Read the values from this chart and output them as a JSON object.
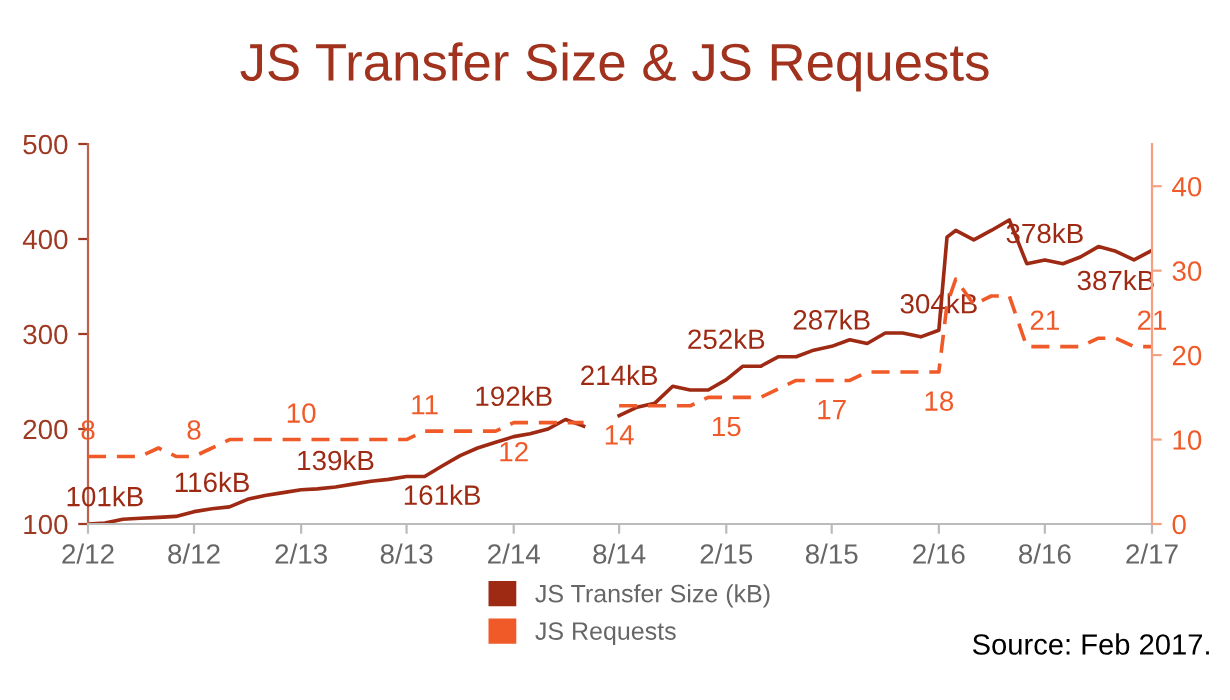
{
  "chart_data": {
    "type": "line",
    "title": "JS Transfer Size & JS Requests",
    "x": [
      "2012-02-01",
      "2012-03-01",
      "2012-04-01",
      "2012-05-01",
      "2012-06-01",
      "2012-07-01",
      "2012-08-01",
      "2012-09-01",
      "2012-10-01",
      "2012-11-01",
      "2012-12-01",
      "2013-01-01",
      "2013-02-01",
      "2013-03-01",
      "2013-04-01",
      "2013-05-01",
      "2013-06-01",
      "2013-07-01",
      "2013-08-01",
      "2013-09-01",
      "2013-10-01",
      "2013-11-01",
      "2013-12-01",
      "2014-01-01",
      "2014-02-01",
      "2014-03-01",
      "2014-04-01",
      "2014-05-01",
      "2014-06-01",
      "2014-07-01",
      "2014-08-01",
      "2014-09-01",
      "2014-10-01",
      "2014-11-01",
      "2014-12-01",
      "2015-01-01",
      "2015-02-01",
      "2015-03-01",
      "2015-04-01",
      "2015-05-01",
      "2015-06-01",
      "2015-07-01",
      "2015-08-01",
      "2015-09-01",
      "2015-10-01",
      "2015-11-01",
      "2015-12-01",
      "2016-01-01",
      "2016-02-01",
      "2016-02-15",
      "2016-03-01",
      "2016-04-01",
      "2016-05-01",
      "2016-06-01",
      "2016-07-01",
      "2016-08-01",
      "2016-09-01",
      "2016-10-01",
      "2016-11-01",
      "2016-12-01",
      "2017-01-01",
      "2017-02-01"
    ],
    "series": [
      {
        "name": "JS Transfer Size (kB)",
        "color": "#9e2a14",
        "line_style": "solid",
        "values": [
          100,
          101,
          105,
          106,
          107,
          108,
          113,
          116,
          118,
          126,
          130,
          133,
          136,
          137,
          139,
          142,
          145,
          147,
          150,
          150,
          161,
          172,
          180,
          186,
          192,
          195,
          200,
          210,
          203,
          null,
          214,
          223,
          227,
          245,
          241,
          241,
          252,
          266,
          266,
          276,
          276,
          283,
          287,
          294,
          290,
          301,
          301,
          297,
          304,
          402,
          409,
          399,
          409,
          420,
          374,
          378,
          374,
          381,
          392,
          387,
          378,
          388
        ],
        "value_labels": [
          null,
          "101kB",
          null,
          null,
          null,
          null,
          null,
          "116kB",
          null,
          null,
          null,
          null,
          null,
          null,
          "139kB",
          null,
          null,
          null,
          null,
          null,
          "161kB",
          null,
          null,
          null,
          "192kB",
          null,
          null,
          null,
          null,
          null,
          "214kB",
          null,
          null,
          null,
          null,
          null,
          "252kB",
          null,
          null,
          null,
          null,
          null,
          "287kB",
          null,
          null,
          null,
          null,
          null,
          "304kB",
          null,
          null,
          null,
          null,
          null,
          null,
          "378kB",
          null,
          null,
          null,
          "387kB",
          null,
          null
        ]
      },
      {
        "name": "JS Requests",
        "color": "#f05a28",
        "line_style": "dashed",
        "axis": "y2",
        "values": [
          8,
          8,
          8,
          8,
          9,
          8,
          8,
          9,
          10,
          10,
          10,
          10,
          10,
          10,
          10,
          10,
          10,
          10,
          10,
          11,
          11,
          11,
          11,
          11,
          12,
          12,
          12,
          12,
          12,
          null,
          14,
          14,
          14,
          14,
          14,
          15,
          15,
          15,
          15,
          16,
          17,
          17,
          17,
          17,
          18,
          18,
          18,
          18,
          18,
          26,
          29,
          26,
          27,
          27,
          21,
          21,
          21,
          21,
          22,
          22,
          21,
          21
        ],
        "value_labels": [
          "8",
          null,
          null,
          null,
          null,
          null,
          "8",
          null,
          null,
          null,
          null,
          null,
          "10",
          null,
          null,
          null,
          null,
          null,
          null,
          "11",
          null,
          null,
          null,
          null,
          "12",
          null,
          null,
          null,
          null,
          null,
          "14",
          null,
          null,
          null,
          null,
          null,
          "15",
          null,
          null,
          null,
          null,
          null,
          "17",
          null,
          null,
          null,
          null,
          null,
          "18",
          null,
          null,
          null,
          null,
          null,
          null,
          "21",
          null,
          null,
          null,
          null,
          null,
          "21"
        ]
      }
    ],
    "xlim": [
      "2012-02-01",
      "2017-02-01"
    ],
    "xticks": [
      {
        "value": "2012-02-01",
        "label": "2/12"
      },
      {
        "value": "2012-08-01",
        "label": "8/12"
      },
      {
        "value": "2013-02-01",
        "label": "2/13"
      },
      {
        "value": "2013-08-01",
        "label": "8/13"
      },
      {
        "value": "2014-02-01",
        "label": "2/14"
      },
      {
        "value": "2014-08-01",
        "label": "8/14"
      },
      {
        "value": "2015-02-01",
        "label": "2/15"
      },
      {
        "value": "2015-08-01",
        "label": "8/15"
      },
      {
        "value": "2016-02-01",
        "label": "2/16"
      },
      {
        "value": "2016-08-01",
        "label": "8/16"
      },
      {
        "value": "2017-02-01",
        "label": "2/17"
      }
    ],
    "ylim": [
      100,
      500
    ],
    "yticks": [
      100,
      200,
      300,
      400,
      500
    ],
    "y2lim": [
      0,
      45
    ],
    "y2ticks": [
      0,
      10,
      20,
      30,
      40
    ],
    "grid": false,
    "legend": "bottom",
    "marker": "none",
    "annotations": [
      "Source: Feb 2017."
    ]
  }
}
